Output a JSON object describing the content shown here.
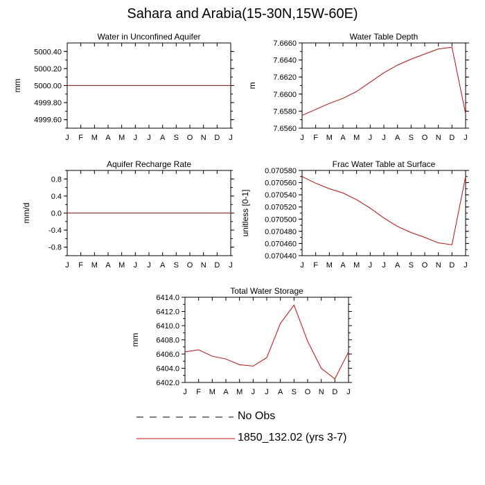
{
  "page": {
    "title": "Sahara and Arabia(15-30N,15W-60E)"
  },
  "colors": {
    "model_line": "#e00000",
    "axis": "#000000"
  },
  "legend": {
    "obs_label": "No Obs",
    "model_label": "1850_132.02 (yrs 3-7)"
  },
  "chart_data": [
    {
      "type": "line",
      "title": "Water in Unconfined Aquifer",
      "ylabel": "mm",
      "xlabel": "",
      "x": [
        "J",
        "F",
        "M",
        "A",
        "M",
        "J",
        "J",
        "A",
        "S",
        "O",
        "N",
        "D",
        "J"
      ],
      "ylim": [
        4999.5,
        5000.5
      ],
      "yticks": [
        4999.6,
        4999.8,
        5000.0,
        5000.2,
        5000.4
      ],
      "ytick_labels": [
        "4999.60",
        "4999.80",
        "5000.00",
        "5000.20",
        "5000.40"
      ],
      "series": [
        {
          "values": [
            5000,
            5000,
            5000,
            5000,
            5000,
            5000,
            5000,
            5000,
            5000,
            5000,
            5000,
            5000,
            5000
          ]
        }
      ]
    },
    {
      "type": "line",
      "title": "Water Table Depth",
      "ylabel": "m",
      "xlabel": "",
      "x": [
        "J",
        "F",
        "M",
        "A",
        "M",
        "J",
        "J",
        "A",
        "S",
        "O",
        "N",
        "D",
        "J"
      ],
      "ylim": [
        7.656,
        7.666
      ],
      "yticks": [
        7.656,
        7.658,
        7.66,
        7.662,
        7.664,
        7.666
      ],
      "ytick_labels": [
        "7.6560",
        "7.6580",
        "7.6600",
        "7.6620",
        "7.6640",
        "7.6660"
      ],
      "series": [
        {
          "values": [
            7.6575,
            7.6582,
            7.6589,
            7.6595,
            7.6603,
            7.6614,
            7.6625,
            7.6634,
            7.6641,
            7.6647,
            7.6653,
            7.6655,
            7.6577
          ]
        }
      ]
    },
    {
      "type": "line",
      "title": "Aquifer Recharge Rate",
      "ylabel": "mm/d",
      "xlabel": "",
      "x": [
        "J",
        "F",
        "M",
        "A",
        "M",
        "J",
        "J",
        "A",
        "S",
        "O",
        "N",
        "D",
        "J"
      ],
      "ylim": [
        -1.0,
        1.0
      ],
      "yticks": [
        -0.8,
        -0.4,
        0.0,
        0.4,
        0.8
      ],
      "ytick_labels": [
        "-0.8",
        "-0.4",
        "0.0",
        "0.4",
        "0.8"
      ],
      "series": [
        {
          "values": [
            0,
            0,
            0,
            0,
            0,
            0,
            0,
            0,
            0,
            0,
            0,
            0,
            0
          ]
        }
      ]
    },
    {
      "type": "line",
      "title": "Frac Water Table at Surface",
      "ylabel": "unitless [0-1]",
      "xlabel": "",
      "x": [
        "J",
        "F",
        "M",
        "A",
        "M",
        "J",
        "J",
        "A",
        "S",
        "O",
        "N",
        "D",
        "J"
      ],
      "ylim": [
        0.07044,
        0.07058
      ],
      "yticks": [
        0.07044,
        0.07046,
        0.07048,
        0.0705,
        0.07052,
        0.07054,
        0.07056,
        0.07058
      ],
      "ytick_labels": [
        "0.070440",
        "0.070460",
        "0.070480",
        "0.070500",
        "0.070520",
        "0.070540",
        "0.070560",
        "0.070580"
      ],
      "series": [
        {
          "values": [
            0.07057,
            0.070559,
            0.07055,
            0.070543,
            0.070532,
            0.070518,
            0.070502,
            0.070488,
            0.070478,
            0.07047,
            0.070461,
            0.070458,
            0.07057
          ]
        }
      ]
    },
    {
      "type": "line",
      "title": "Total Water Storage",
      "ylabel": "mm",
      "xlabel": "",
      "x": [
        "J",
        "F",
        "M",
        "A",
        "M",
        "J",
        "J",
        "A",
        "S",
        "O",
        "N",
        "D",
        "J"
      ],
      "ylim": [
        6402.0,
        6414.0
      ],
      "yticks": [
        6402,
        6404,
        6406,
        6408,
        6410,
        6412,
        6414
      ],
      "ytick_labels": [
        "6402.0",
        "6404.0",
        "6406.0",
        "6408.0",
        "6410.0",
        "6412.0",
        "6414.0"
      ],
      "series": [
        {
          "values": [
            6406.3,
            6406.6,
            6405.7,
            6405.3,
            6404.5,
            6404.3,
            6405.5,
            6410.3,
            6412.9,
            6407.8,
            6404.0,
            6402.5,
            6406.3
          ]
        }
      ]
    }
  ]
}
